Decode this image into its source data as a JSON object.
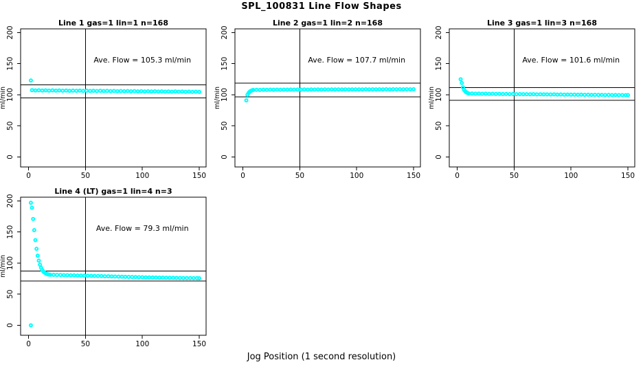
{
  "figure": {
    "title": "SPL_100831  Line Flow Shapes",
    "xlabel": "Jog Position (1 second resolution)",
    "ylabel": "ml/min",
    "colors": {
      "points": "#00ffff",
      "lines": "#000000",
      "background": "#ffffff",
      "text": "#000000"
    }
  },
  "chart_data": [
    {
      "type": "scatter",
      "title": "Line 1 gas=1 lin=1 n=168",
      "annotation": "Ave. Flow =  105.3  ml/min",
      "ave_flow": 105.3,
      "ylabel": "ml/min",
      "xlim": [
        -7,
        156
      ],
      "ylim": [
        -16,
        206
      ],
      "xticks": [
        0,
        50,
        100,
        150
      ],
      "yticks": [
        0,
        50,
        100,
        150,
        200
      ],
      "vline_x": 50,
      "hlines": [
        115.8,
        94.8
      ],
      "annotation_pos": [
        100,
        152
      ],
      "points": [
        [
          2,
          123
        ],
        [
          3,
          107.4
        ],
        [
          6,
          107.0
        ],
        [
          9,
          107.3
        ],
        [
          12,
          106.9
        ],
        [
          15,
          107.2
        ],
        [
          18,
          106.8
        ],
        [
          21,
          107.1
        ],
        [
          24,
          106.7
        ],
        [
          27,
          107.0
        ],
        [
          30,
          106.6
        ],
        [
          33,
          106.9
        ],
        [
          36,
          106.5
        ],
        [
          39,
          106.8
        ],
        [
          42,
          106.4
        ],
        [
          45,
          106.7
        ],
        [
          48,
          106.3
        ],
        [
          51,
          106.6
        ],
        [
          54,
          106.2
        ],
        [
          57,
          106.5
        ],
        [
          60,
          106.1
        ],
        [
          63,
          106.4
        ],
        [
          66,
          106.0
        ],
        [
          69,
          106.3
        ],
        [
          72,
          105.9
        ],
        [
          75,
          106.2
        ],
        [
          78,
          105.8
        ],
        [
          81,
          106.1
        ],
        [
          84,
          105.7
        ],
        [
          87,
          106.0
        ],
        [
          90,
          105.6
        ],
        [
          93,
          105.9
        ],
        [
          96,
          105.5
        ],
        [
          99,
          105.8
        ],
        [
          102,
          105.4
        ],
        [
          105,
          105.7
        ],
        [
          108,
          105.3
        ],
        [
          111,
          105.6
        ],
        [
          114,
          105.2
        ],
        [
          117,
          105.5
        ],
        [
          120,
          105.1
        ],
        [
          123,
          105.4
        ],
        [
          126,
          105.0
        ],
        [
          129,
          105.3
        ],
        [
          132,
          104.9
        ],
        [
          135,
          105.2
        ],
        [
          138,
          104.8
        ],
        [
          141,
          105.1
        ],
        [
          144,
          104.7
        ],
        [
          147,
          105.0
        ],
        [
          150,
          104.6
        ]
      ]
    },
    {
      "type": "scatter",
      "title": "Line 2 gas=1 lin=2 n=168",
      "annotation": "Ave. Flow =  107.7  ml/min",
      "ave_flow": 107.7,
      "ylabel": "ml/min",
      "xlim": [
        -7,
        156
      ],
      "ylim": [
        -16,
        206
      ],
      "xticks": [
        0,
        50,
        100,
        150
      ],
      "yticks": [
        0,
        50,
        100,
        150,
        200
      ],
      "vline_x": 50,
      "hlines": [
        118.5,
        96.9
      ],
      "annotation_pos": [
        100,
        152
      ],
      "points": [
        [
          3,
          91
        ],
        [
          4,
          100
        ],
        [
          5,
          103
        ],
        [
          6,
          105
        ],
        [
          7,
          106.3
        ],
        [
          8,
          107.2
        ],
        [
          9,
          107.8
        ],
        [
          12,
          108.0
        ],
        [
          15,
          107.9
        ],
        [
          18,
          108.1
        ],
        [
          21,
          108.0
        ],
        [
          24,
          108.2
        ],
        [
          27,
          108.1
        ],
        [
          30,
          108.3
        ],
        [
          33,
          108.1
        ],
        [
          36,
          108.3
        ],
        [
          39,
          108.2
        ],
        [
          42,
          108.4
        ],
        [
          45,
          108.2
        ],
        [
          48,
          108.4
        ],
        [
          51,
          108.3
        ],
        [
          54,
          108.5
        ],
        [
          57,
          108.3
        ],
        [
          60,
          108.5
        ],
        [
          63,
          108.4
        ],
        [
          66,
          108.5
        ],
        [
          69,
          108.4
        ],
        [
          72,
          108.6
        ],
        [
          75,
          108.4
        ],
        [
          78,
          108.6
        ],
        [
          81,
          108.5
        ],
        [
          84,
          108.6
        ],
        [
          87,
          108.5
        ],
        [
          90,
          108.7
        ],
        [
          93,
          108.5
        ],
        [
          96,
          108.7
        ],
        [
          99,
          108.6
        ],
        [
          102,
          108.7
        ],
        [
          105,
          108.6
        ],
        [
          108,
          108.8
        ],
        [
          111,
          108.6
        ],
        [
          114,
          108.8
        ],
        [
          117,
          108.7
        ],
        [
          120,
          108.8
        ],
        [
          123,
          108.7
        ],
        [
          126,
          108.9
        ],
        [
          129,
          108.7
        ],
        [
          132,
          108.9
        ],
        [
          135,
          108.8
        ],
        [
          138,
          108.9
        ],
        [
          141,
          108.8
        ],
        [
          144,
          109.0
        ],
        [
          147,
          108.8
        ],
        [
          150,
          108.9
        ]
      ]
    },
    {
      "type": "scatter",
      "title": "Line 3 gas=1 lin=3 n=168",
      "annotation": "Ave. Flow =  101.6  ml/min",
      "ave_flow": 101.6,
      "ylabel": "ml/min",
      "xlim": [
        -7,
        156
      ],
      "ylim": [
        -16,
        206
      ],
      "xticks": [
        0,
        50,
        100,
        150
      ],
      "yticks": [
        0,
        50,
        100,
        150,
        200
      ],
      "vline_x": 50,
      "hlines": [
        111.8,
        91.4
      ],
      "annotation_pos": [
        100,
        152
      ],
      "points": [
        [
          3,
          125
        ],
        [
          4,
          119
        ],
        [
          5,
          112
        ],
        [
          6,
          108
        ],
        [
          7,
          105.5
        ],
        [
          8,
          104
        ],
        [
          9,
          103
        ],
        [
          10,
          102.1
        ],
        [
          13,
          102.0
        ],
        [
          16,
          101.8
        ],
        [
          19,
          101.9
        ],
        [
          22,
          101.6
        ],
        [
          25,
          101.8
        ],
        [
          28,
          101.5
        ],
        [
          31,
          101.6
        ],
        [
          34,
          101.3
        ],
        [
          37,
          101.5
        ],
        [
          40,
          101.2
        ],
        [
          43,
          101.3
        ],
        [
          46,
          101.1
        ],
        [
          49,
          101.2
        ],
        [
          52,
          101.0
        ],
        [
          55,
          101.1
        ],
        [
          58,
          100.9
        ],
        [
          61,
          101.0
        ],
        [
          64,
          100.8
        ],
        [
          67,
          100.9
        ],
        [
          70,
          100.7
        ],
        [
          73,
          100.8
        ],
        [
          76,
          100.6
        ],
        [
          79,
          100.7
        ],
        [
          82,
          100.5
        ],
        [
          85,
          100.6
        ],
        [
          88,
          100.4
        ],
        [
          91,
          100.5
        ],
        [
          94,
          100.3
        ],
        [
          97,
          100.4
        ],
        [
          100,
          100.2
        ],
        [
          103,
          100.3
        ],
        [
          106,
          100.1
        ],
        [
          109,
          100.2
        ],
        [
          112,
          100.0
        ],
        [
          115,
          100.1
        ],
        [
          118,
          99.9
        ],
        [
          121,
          100.0
        ],
        [
          124,
          99.8
        ],
        [
          127,
          99.9
        ],
        [
          130,
          99.7
        ],
        [
          133,
          99.8
        ],
        [
          136,
          99.6
        ],
        [
          139,
          99.7
        ],
        [
          142,
          99.5
        ],
        [
          145,
          99.6
        ],
        [
          148,
          99.4
        ],
        [
          150,
          99.5
        ]
      ]
    },
    {
      "type": "scatter",
      "title": "Line 4 (LT) gas=1 lin=4 n=3",
      "annotation": "Ave. Flow =  79.3  ml/min",
      "ave_flow": 79.3,
      "ylabel": "ml/min",
      "xlim": [
        -7,
        156
      ],
      "ylim": [
        -16,
        206
      ],
      "xticks": [
        0,
        50,
        100,
        150
      ],
      "yticks": [
        0,
        50,
        100,
        150,
        200
      ],
      "vline_x": 50,
      "hlines": [
        87.2,
        71.4
      ],
      "annotation_pos": [
        100,
        152
      ],
      "points": [
        [
          2,
          0
        ],
        [
          2,
          197
        ],
        [
          3,
          189
        ],
        [
          4,
          171
        ],
        [
          5,
          153
        ],
        [
          6,
          137
        ],
        [
          7,
          123
        ],
        [
          8,
          112
        ],
        [
          9,
          104
        ],
        [
          10,
          97.5
        ],
        [
          11,
          92.5
        ],
        [
          12,
          89
        ],
        [
          13,
          86.5
        ],
        [
          14,
          84.8
        ],
        [
          15,
          83.5
        ],
        [
          16,
          82.6
        ],
        [
          17,
          82
        ],
        [
          18,
          81.6
        ],
        [
          19,
          81.3
        ],
        [
          22,
          81.2
        ],
        [
          25,
          81.0
        ],
        [
          28,
          80.9
        ],
        [
          31,
          80.7
        ],
        [
          34,
          80.6
        ],
        [
          37,
          80.4
        ],
        [
          40,
          80.3
        ],
        [
          43,
          80.1
        ],
        [
          46,
          80.0
        ],
        [
          49,
          79.8
        ],
        [
          52,
          79.7
        ],
        [
          55,
          79.5
        ],
        [
          58,
          79.4
        ],
        [
          61,
          79.2
        ],
        [
          64,
          79.1
        ],
        [
          67,
          78.9
        ],
        [
          70,
          78.8
        ],
        [
          73,
          78.6
        ],
        [
          76,
          78.5
        ],
        [
          79,
          78.3
        ],
        [
          82,
          78.2
        ],
        [
          85,
          78.0
        ],
        [
          88,
          77.9
        ],
        [
          91,
          77.7
        ],
        [
          94,
          77.6
        ],
        [
          97,
          77.4
        ],
        [
          100,
          77.3
        ],
        [
          103,
          77.1
        ],
        [
          106,
          77.0
        ],
        [
          109,
          76.9
        ],
        [
          112,
          76.8
        ],
        [
          115,
          76.7
        ],
        [
          118,
          76.6
        ],
        [
          121,
          76.5
        ],
        [
          124,
          76.4
        ],
        [
          127,
          76.3
        ],
        [
          130,
          76.2
        ],
        [
          133,
          76.1
        ],
        [
          136,
          76.0
        ],
        [
          139,
          75.9
        ],
        [
          142,
          75.9
        ],
        [
          145,
          75.8
        ],
        [
          148,
          75.8
        ],
        [
          150,
          75.7
        ]
      ]
    }
  ]
}
